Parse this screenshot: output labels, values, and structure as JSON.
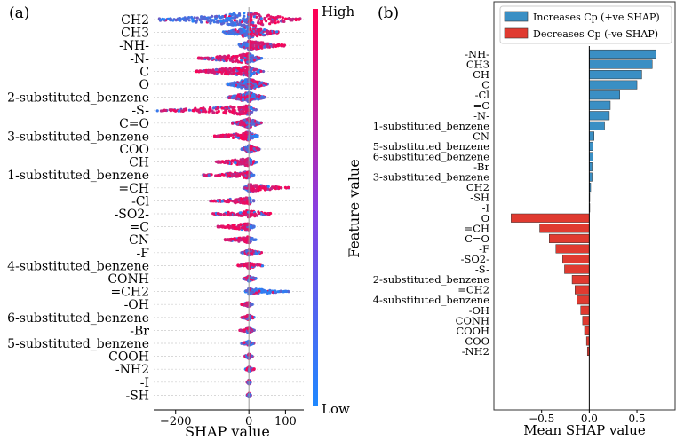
{
  "chart_data": [
    {
      "panel_label": "(a)",
      "type": "scatter",
      "subtype": "beeswarm",
      "xlabel": "SHAP value",
      "xlim": [
        -260,
        150
      ],
      "xticks": [
        -200,
        0,
        100
      ],
      "xtick_labels": [
        "−200",
        "0",
        "100"
      ],
      "colorbar": {
        "label": "Feature value",
        "high": "High",
        "low": "Low",
        "low_color": "#1e88ff",
        "high_color": "#ff0052"
      },
      "features": [
        {
          "name": "CH2",
          "min": -245,
          "max": 140,
          "neg_high": 0.05,
          "pos_high": 0.85,
          "density": 1.0
        },
        {
          "name": "CH3",
          "min": -70,
          "max": 82,
          "neg_high": 0.1,
          "pos_high": 0.8,
          "density": 0.7
        },
        {
          "name": "-NH-",
          "min": -30,
          "max": 100,
          "neg_high": 0.1,
          "pos_high": 0.9,
          "density": 0.55
        },
        {
          "name": "-N-",
          "min": -140,
          "max": 35,
          "neg_high": 0.85,
          "pos_high": 0.2,
          "density": 0.6
        },
        {
          "name": "C",
          "min": -145,
          "max": 40,
          "neg_high": 0.85,
          "pos_high": 0.2,
          "density": 0.6
        },
        {
          "name": "O",
          "min": -60,
          "max": 52,
          "neg_high": 0.2,
          "pos_high": 0.6,
          "density": 0.7
        },
        {
          "name": "2-substituted_benzene",
          "min": -55,
          "max": 45,
          "neg_high": 0.6,
          "pos_high": 0.3,
          "density": 0.6
        },
        {
          "name": "-S-",
          "min": -250,
          "max": 20,
          "neg_high": 0.9,
          "pos_high": 0.1,
          "density": 0.55
        },
        {
          "name": "C=O",
          "min": -45,
          "max": 35,
          "neg_high": 0.5,
          "pos_high": 0.4,
          "density": 0.55
        },
        {
          "name": "3-substituted_benzene",
          "min": -95,
          "max": 25,
          "neg_high": 0.85,
          "pos_high": 0.2,
          "density": 0.45
        },
        {
          "name": "COO",
          "min": -20,
          "max": 30,
          "neg_high": 0.3,
          "pos_high": 0.6,
          "density": 0.4
        },
        {
          "name": "CH",
          "min": -90,
          "max": 20,
          "neg_high": 0.85,
          "pos_high": 0.2,
          "density": 0.4
        },
        {
          "name": "1-substituted_benzene",
          "min": -125,
          "max": 15,
          "neg_high": 0.9,
          "pos_high": 0.1,
          "density": 0.3
        },
        {
          "name": "=CH",
          "min": -15,
          "max": 110,
          "neg_high": 0.1,
          "pos_high": 0.9,
          "density": 0.35
        },
        {
          "name": "-Cl",
          "min": -105,
          "max": 15,
          "neg_high": 0.9,
          "pos_high": 0.1,
          "density": 0.3
        },
        {
          "name": "-SO2-",
          "min": -100,
          "max": 60,
          "neg_high": 0.8,
          "pos_high": 0.9,
          "density": 0.3
        },
        {
          "name": "=C",
          "min": -85,
          "max": 15,
          "neg_high": 0.9,
          "pos_high": 0.1,
          "density": 0.3
        },
        {
          "name": "CN",
          "min": -70,
          "max": 20,
          "neg_high": 0.9,
          "pos_high": 0.1,
          "density": 0.25
        },
        {
          "name": "-F",
          "min": -20,
          "max": 35,
          "neg_high": 0.4,
          "pos_high": 0.8,
          "density": 0.2
        },
        {
          "name": "4-substituted_benzene",
          "min": -30,
          "max": 40,
          "neg_high": 0.9,
          "pos_high": 0.8,
          "density": 0.2
        },
        {
          "name": "CONH",
          "min": -15,
          "max": 20,
          "neg_high": 0.5,
          "pos_high": 0.5,
          "density": 0.2
        },
        {
          "name": "=CH2",
          "min": -10,
          "max": 110,
          "neg_high": 0.1,
          "pos_high": 0.15,
          "density": 0.25
        },
        {
          "name": "-OH",
          "min": -20,
          "max": 10,
          "neg_high": 0.7,
          "pos_high": 0.2,
          "density": 0.15
        },
        {
          "name": "6-substituted_benzene",
          "min": -20,
          "max": 15,
          "neg_high": 0.7,
          "pos_high": 0.5,
          "density": 0.15
        },
        {
          "name": "-Br",
          "min": -25,
          "max": 15,
          "neg_high": 0.8,
          "pos_high": 0.3,
          "density": 0.15
        },
        {
          "name": "5-substituted_benzene",
          "min": -20,
          "max": 15,
          "neg_high": 0.6,
          "pos_high": 0.4,
          "density": 0.12
        },
        {
          "name": "COOH",
          "min": -12,
          "max": 10,
          "neg_high": 0.5,
          "pos_high": 0.5,
          "density": 0.12
        },
        {
          "name": "-NH2",
          "min": -10,
          "max": 15,
          "neg_high": 0.5,
          "pos_high": 0.5,
          "density": 0.1
        },
        {
          "name": "-I",
          "min": -5,
          "max": 5,
          "neg_high": 0.5,
          "pos_high": 0.5,
          "density": 0.08
        },
        {
          "name": "-SH",
          "min": -5,
          "max": 5,
          "neg_high": 0.5,
          "pos_high": 0.5,
          "density": 0.08
        }
      ]
    },
    {
      "panel_label": "(b)",
      "type": "bar",
      "orientation": "horizontal",
      "xlabel": "Mean SHAP value",
      "xlim": [
        -1.0,
        0.9
      ],
      "xticks": [
        -0.5,
        0.0,
        0.5
      ],
      "xtick_labels": [
        "−0.5",
        "0.0",
        "0.5"
      ],
      "legend": {
        "position": "top-right",
        "entries": [
          {
            "label": "Increases Cp (+ve SHAP)",
            "color": "#3a8fc4"
          },
          {
            "label": "Decreases Cp (-ve SHAP)",
            "color": "#e03a30"
          }
        ]
      },
      "categories": [
        "-NH-",
        "CH3",
        "CH",
        "C",
        "-Cl",
        "=C",
        "-N-",
        "1-substituted_benzene",
        "CN",
        "5-substituted_benzene",
        "6-substituted_benzene",
        "-Br",
        "3-substituted_benzene",
        "CH2",
        "-SH",
        "-I",
        "O",
        "=CH",
        "C=O",
        "-F",
        "-SO2-",
        "-S-",
        "2-substituted_benzene",
        "=CH2",
        "4-substituted_benzene",
        "-OH",
        "CONH",
        "COOH",
        "COO",
        "-NH2"
      ],
      "values": [
        0.7,
        0.66,
        0.55,
        0.5,
        0.32,
        0.22,
        0.21,
        0.16,
        0.05,
        0.04,
        0.04,
        0.03,
        0.03,
        0.015,
        0.005,
        0.002,
        -0.82,
        -0.52,
        -0.42,
        -0.35,
        -0.28,
        -0.26,
        -0.18,
        -0.15,
        -0.13,
        -0.09,
        -0.07,
        -0.05,
        -0.03,
        -0.02
      ]
    }
  ]
}
